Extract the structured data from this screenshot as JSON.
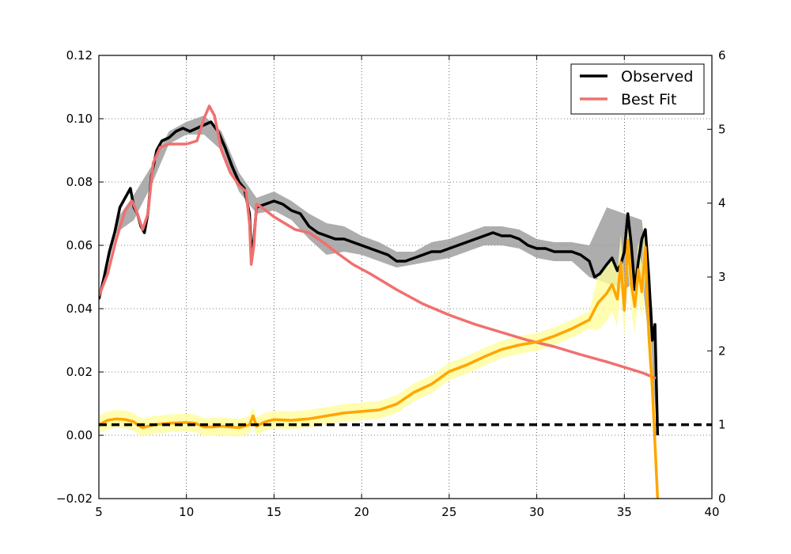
{
  "chart_data": {
    "type": "line",
    "grid": true,
    "legend_position": "top-right",
    "xlim": [
      5,
      40
    ],
    "ylim": [
      -0.02,
      0.12
    ],
    "y2lim": [
      0,
      6
    ],
    "x_ticks": [
      "5",
      "10",
      "15",
      "20",
      "25",
      "30",
      "35",
      "40"
    ],
    "y_ticks": [
      "−0.02",
      "0.00",
      "0.02",
      "0.04",
      "0.06",
      "0.08",
      "0.10",
      "0.12"
    ],
    "y2_ticks": [
      "0",
      "1",
      "2",
      "3",
      "4",
      "5",
      "6"
    ],
    "legend": [
      "Observed",
      "Best Fit"
    ],
    "series": [
      {
        "name": "Observed",
        "axis": "left",
        "color": "#000000",
        "band_color": "#999999",
        "points": [
          [
            5.0,
            0.043
          ],
          [
            5.3,
            0.05
          ],
          [
            5.6,
            0.058
          ],
          [
            5.9,
            0.064
          ],
          [
            6.2,
            0.072
          ],
          [
            6.5,
            0.075
          ],
          [
            6.8,
            0.078
          ],
          [
            7.0,
            0.072
          ],
          [
            7.2,
            0.07
          ],
          [
            7.4,
            0.066
          ],
          [
            7.6,
            0.064
          ],
          [
            7.8,
            0.07
          ],
          [
            8.0,
            0.082
          ],
          [
            8.3,
            0.09
          ],
          [
            8.6,
            0.093
          ],
          [
            9.0,
            0.094
          ],
          [
            9.4,
            0.096
          ],
          [
            9.8,
            0.097
          ],
          [
            10.2,
            0.096
          ],
          [
            10.6,
            0.097
          ],
          [
            11.0,
            0.098
          ],
          [
            11.4,
            0.099
          ],
          [
            11.8,
            0.096
          ],
          [
            12.2,
            0.091
          ],
          [
            12.6,
            0.085
          ],
          [
            13.0,
            0.08
          ],
          [
            13.3,
            0.078
          ],
          [
            13.6,
            0.07
          ],
          [
            13.7,
            0.058
          ],
          [
            13.85,
            0.062
          ],
          [
            14.0,
            0.072
          ],
          [
            14.5,
            0.073
          ],
          [
            15.0,
            0.074
          ],
          [
            15.5,
            0.073
          ],
          [
            16.0,
            0.071
          ],
          [
            16.5,
            0.07
          ],
          [
            17.0,
            0.066
          ],
          [
            17.5,
            0.064
          ],
          [
            18.0,
            0.063
          ],
          [
            18.5,
            0.062
          ],
          [
            19.0,
            0.062
          ],
          [
            19.5,
            0.061
          ],
          [
            20.0,
            0.06
          ],
          [
            20.5,
            0.059
          ],
          [
            21.0,
            0.058
          ],
          [
            21.5,
            0.057
          ],
          [
            22.0,
            0.055
          ],
          [
            22.5,
            0.055
          ],
          [
            23.0,
            0.056
          ],
          [
            23.5,
            0.057
          ],
          [
            24.0,
            0.058
          ],
          [
            24.5,
            0.058
          ],
          [
            25.0,
            0.059
          ],
          [
            25.5,
            0.06
          ],
          [
            26.0,
            0.061
          ],
          [
            26.5,
            0.062
          ],
          [
            27.0,
            0.063
          ],
          [
            27.5,
            0.064
          ],
          [
            28.0,
            0.063
          ],
          [
            28.5,
            0.063
          ],
          [
            29.0,
            0.062
          ],
          [
            29.5,
            0.06
          ],
          [
            30.0,
            0.059
          ],
          [
            30.5,
            0.059
          ],
          [
            31.0,
            0.058
          ],
          [
            31.5,
            0.058
          ],
          [
            32.0,
            0.058
          ],
          [
            32.5,
            0.057
          ],
          [
            33.0,
            0.055
          ],
          [
            33.3,
            0.05
          ],
          [
            33.6,
            0.051
          ],
          [
            34.0,
            0.054
          ],
          [
            34.3,
            0.056
          ],
          [
            34.6,
            0.052
          ],
          [
            34.8,
            0.054
          ],
          [
            35.0,
            0.058
          ],
          [
            35.2,
            0.07
          ],
          [
            35.4,
            0.06
          ],
          [
            35.6,
            0.046
          ],
          [
            35.8,
            0.055
          ],
          [
            36.0,
            0.062
          ],
          [
            36.2,
            0.065
          ],
          [
            36.4,
            0.05
          ],
          [
            36.6,
            0.03
          ],
          [
            36.75,
            0.035
          ],
          [
            36.9,
            0.0
          ]
        ],
        "band": [
          [
            5.0,
            0.043,
            0.043
          ],
          [
            6.0,
            0.064,
            0.068
          ],
          [
            7.0,
            0.068,
            0.076
          ],
          [
            8.0,
            0.079,
            0.085
          ],
          [
            9.0,
            0.092,
            0.096
          ],
          [
            10.0,
            0.095,
            0.099
          ],
          [
            11.0,
            0.095,
            0.101
          ],
          [
            12.0,
            0.09,
            0.096
          ],
          [
            13.0,
            0.077,
            0.083
          ],
          [
            14.0,
            0.07,
            0.075
          ],
          [
            15.0,
            0.071,
            0.077
          ],
          [
            16.0,
            0.068,
            0.074
          ],
          [
            17.0,
            0.062,
            0.07
          ],
          [
            18.0,
            0.057,
            0.067
          ],
          [
            19.0,
            0.058,
            0.066
          ],
          [
            20.0,
            0.057,
            0.063
          ],
          [
            21.0,
            0.055,
            0.061
          ],
          [
            22.0,
            0.053,
            0.058
          ],
          [
            23.0,
            0.054,
            0.058
          ],
          [
            24.0,
            0.055,
            0.061
          ],
          [
            25.0,
            0.056,
            0.062
          ],
          [
            26.0,
            0.058,
            0.064
          ],
          [
            27.0,
            0.06,
            0.066
          ],
          [
            28.0,
            0.06,
            0.066
          ],
          [
            29.0,
            0.059,
            0.065
          ],
          [
            30.0,
            0.056,
            0.062
          ],
          [
            31.0,
            0.055,
            0.061
          ],
          [
            32.0,
            0.055,
            0.061
          ],
          [
            33.0,
            0.05,
            0.06
          ],
          [
            34.0,
            0.048,
            0.072
          ],
          [
            35.0,
            0.046,
            0.07
          ],
          [
            36.0,
            0.05,
            0.068
          ],
          [
            36.6,
            0.02,
            0.04
          ],
          [
            36.9,
            0.0,
            0.01
          ]
        ]
      },
      {
        "name": "Best Fit",
        "axis": "left",
        "color": "#f07070",
        "points": [
          [
            5.0,
            0.044
          ],
          [
            5.5,
            0.051
          ],
          [
            6.0,
            0.062
          ],
          [
            6.5,
            0.071
          ],
          [
            6.9,
            0.074
          ],
          [
            7.2,
            0.07
          ],
          [
            7.5,
            0.065
          ],
          [
            7.8,
            0.07
          ],
          [
            8.1,
            0.086
          ],
          [
            8.5,
            0.091
          ],
          [
            9.0,
            0.092
          ],
          [
            10.0,
            0.092
          ],
          [
            10.6,
            0.093
          ],
          [
            11.0,
            0.1
          ],
          [
            11.3,
            0.104
          ],
          [
            11.6,
            0.101
          ],
          [
            12.0,
            0.09
          ],
          [
            12.5,
            0.083
          ],
          [
            13.0,
            0.079
          ],
          [
            13.4,
            0.077
          ],
          [
            13.6,
            0.067
          ],
          [
            13.7,
            0.054
          ],
          [
            13.85,
            0.06
          ],
          [
            14.0,
            0.073
          ],
          [
            14.3,
            0.072
          ],
          [
            15.0,
            0.069
          ],
          [
            15.6,
            0.067
          ],
          [
            16.2,
            0.065
          ],
          [
            17.0,
            0.064
          ],
          [
            17.8,
            0.061
          ],
          [
            18.5,
            0.058
          ],
          [
            19.5,
            0.054
          ],
          [
            20.5,
            0.051
          ],
          [
            22.0,
            0.046
          ],
          [
            23.5,
            0.0415
          ],
          [
            25.0,
            0.038
          ],
          [
            26.5,
            0.035
          ],
          [
            28.0,
            0.0325
          ],
          [
            29.5,
            0.03
          ],
          [
            31.0,
            0.028
          ],
          [
            32.5,
            0.0255
          ],
          [
            34.0,
            0.0232
          ],
          [
            35.0,
            0.0215
          ],
          [
            36.0,
            0.0198
          ],
          [
            36.8,
            0.018
          ]
        ]
      },
      {
        "name": "",
        "axis": "right",
        "color": "#ffa500",
        "band_color": "#fffc9c",
        "points": [
          [
            5.0,
            1.0
          ],
          [
            5.5,
            1.06
          ],
          [
            6.0,
            1.08
          ],
          [
            6.5,
            1.07
          ],
          [
            7.0,
            1.04
          ],
          [
            7.2,
            1.0
          ],
          [
            7.5,
            0.96
          ],
          [
            7.8,
            0.98
          ],
          [
            8.2,
            1.0
          ],
          [
            9.0,
            1.02
          ],
          [
            10.0,
            1.03
          ],
          [
            10.5,
            1.02
          ],
          [
            11.0,
            0.97
          ],
          [
            11.5,
            0.97
          ],
          [
            12.0,
            0.98
          ],
          [
            13.0,
            0.96
          ],
          [
            13.6,
            1.0
          ],
          [
            13.8,
            1.12
          ],
          [
            14.0,
            0.98
          ],
          [
            14.5,
            1.04
          ],
          [
            15.0,
            1.07
          ],
          [
            16.0,
            1.06
          ],
          [
            17.0,
            1.08
          ],
          [
            18.0,
            1.12
          ],
          [
            19.0,
            1.16
          ],
          [
            20.0,
            1.18
          ],
          [
            21.0,
            1.2
          ],
          [
            22.0,
            1.28
          ],
          [
            23.0,
            1.44
          ],
          [
            24.0,
            1.55
          ],
          [
            25.0,
            1.72
          ],
          [
            26.0,
            1.81
          ],
          [
            27.0,
            1.92
          ],
          [
            28.0,
            2.02
          ],
          [
            29.0,
            2.08
          ],
          [
            30.0,
            2.12
          ],
          [
            31.0,
            2.2
          ],
          [
            32.0,
            2.3
          ],
          [
            33.0,
            2.42
          ],
          [
            33.5,
            2.65
          ],
          [
            34.0,
            2.78
          ],
          [
            34.3,
            2.9
          ],
          [
            34.6,
            2.7
          ],
          [
            34.8,
            3.2
          ],
          [
            35.0,
            2.55
          ],
          [
            35.2,
            3.5
          ],
          [
            35.4,
            2.9
          ],
          [
            35.6,
            2.6
          ],
          [
            35.8,
            3.1
          ],
          [
            36.0,
            2.8
          ],
          [
            36.2,
            3.4
          ],
          [
            36.4,
            2.2
          ],
          [
            36.6,
            1.5
          ],
          [
            36.9,
            0.0
          ]
        ]
      },
      {
        "name": "",
        "axis": "right",
        "color": "#000000",
        "style": "dashed",
        "points": [
          [
            5.0,
            1.0
          ],
          [
            40.0,
            1.0
          ]
        ]
      }
    ]
  }
}
